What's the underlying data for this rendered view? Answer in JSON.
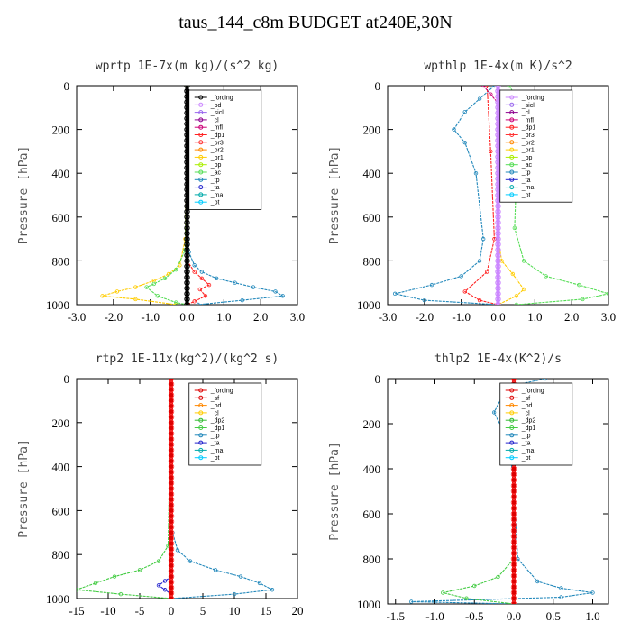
{
  "title": "taus_144_c8m  BUDGET at240E,30N",
  "colors": {
    "forcing": "#000000",
    "pd": "#cc88ff",
    "sicl": "#9966ee",
    "cl": "#8e008e",
    "mfl": "#cc0077",
    "dp1": "#ff2222",
    "dp2": "#33bb33",
    "pr3": "#ff3333",
    "pr2": "#ff8800",
    "pr1": "#ffcc00",
    "bp": "#aaee00",
    "ac": "#55dd55",
    "tp": "#2288bb",
    "ta": "#2222cc",
    "ma": "#00aaaa",
    "bt": "#00ccff",
    "sf": "#dd0000",
    "green": "#44cc44"
  },
  "chart_data": [
    {
      "type": "line",
      "title": "wprtp  1E-7x(m kg)/(s^2 kg)",
      "ylabel": "Pressure [hPa]",
      "xlim": [
        -3.0,
        3.0
      ],
      "ylim": [
        1000,
        0
      ],
      "xticks": [
        "-3.0",
        "-2.0",
        "-1.0",
        "0.0",
        "1.0",
        "2.0",
        "3.0"
      ],
      "yticks": [
        "0",
        "200",
        "400",
        "600",
        "800",
        "1000"
      ],
      "legend": [
        "_forcing",
        "_pd",
        "_sicl",
        "_cl",
        "_mfl",
        "_dp1",
        "_pr3",
        "_pr2",
        "_pr1",
        "_bp",
        "_ac",
        "_tp",
        "_ta",
        "_ma",
        "_bt"
      ],
      "legend_position": "top-right",
      "series": [
        {
          "name": "_tp",
          "color": "tp",
          "points": [
            [
              0.0,
              0
            ],
            [
              0.02,
              500
            ],
            [
              0.05,
              760
            ],
            [
              0.2,
              820
            ],
            [
              0.4,
              850
            ],
            [
              0.8,
              880
            ],
            [
              1.3,
              900
            ],
            [
              1.8,
              920
            ],
            [
              2.4,
              940
            ],
            [
              2.6,
              960
            ],
            [
              1.5,
              980
            ],
            [
              0.3,
              1000
            ]
          ]
        },
        {
          "name": "_pr1",
          "color": "pr1",
          "points": [
            [
              0.0,
              0
            ],
            [
              -0.05,
              700
            ],
            [
              -0.2,
              820
            ],
            [
              -0.5,
              860
            ],
            [
              -0.9,
              890
            ],
            [
              -1.4,
              920
            ],
            [
              -1.9,
              940
            ],
            [
              -2.3,
              960
            ],
            [
              -1.4,
              975
            ],
            [
              -0.3,
              1000
            ]
          ]
        },
        {
          "name": "_ac",
          "color": "ac",
          "points": [
            [
              0.0,
              0
            ],
            [
              -0.05,
              750
            ],
            [
              -0.3,
              840
            ],
            [
              -0.6,
              880
            ],
            [
              -0.9,
              905
            ],
            [
              -1.1,
              920
            ],
            [
              -0.8,
              960
            ],
            [
              -0.3,
              990
            ],
            [
              0.0,
              1000
            ]
          ]
        },
        {
          "name": "_dp1",
          "color": "dp1",
          "points": [
            [
              0.0,
              800
            ],
            [
              0.2,
              850
            ],
            [
              0.4,
              880
            ],
            [
              0.6,
              910
            ],
            [
              0.35,
              930
            ],
            [
              0.5,
              960
            ],
            [
              0.2,
              985
            ],
            [
              0.0,
              1000
            ]
          ]
        },
        {
          "name": "_forcing",
          "color": "forcing",
          "points": [
            [
              0.0,
              0
            ],
            [
              0.0,
              1000
            ]
          ]
        }
      ]
    },
    {
      "type": "line",
      "title": "wpthlp  1E-4x(m K)/s^2",
      "ylabel": "Pressure [hPa]",
      "xlim": [
        -3.0,
        3.0
      ],
      "ylim": [
        1000,
        0
      ],
      "xticks": [
        "-3.0",
        "-2.0",
        "-1.0",
        "0.0",
        "1.0",
        "2.0",
        "3.0"
      ],
      "yticks": [
        "0",
        "200",
        "400",
        "600",
        "800",
        "1000"
      ],
      "legend": [
        "_forcing",
        "_sicl",
        "_cl",
        "_mfl",
        "_dp1",
        "_pr3",
        "_pr2",
        "_pr1",
        "_bp",
        "_ac",
        "_tp",
        "_ta",
        "_ma",
        "_bt"
      ],
      "legend_position": "top-right",
      "series": [
        {
          "name": "_tp",
          "color": "tp",
          "points": [
            [
              -0.1,
              0
            ],
            [
              -0.5,
              60
            ],
            [
              -0.9,
              120
            ],
            [
              -1.2,
              200
            ],
            [
              -0.9,
              260
            ],
            [
              -0.6,
              400
            ],
            [
              -0.4,
              700
            ],
            [
              -0.5,
              800
            ],
            [
              -1.0,
              870
            ],
            [
              -1.8,
              910
            ],
            [
              -2.8,
              950
            ],
            [
              -2.0,
              980
            ],
            [
              0.0,
              1000
            ]
          ]
        },
        {
          "name": "_ac",
          "color": "ac",
          "points": [
            [
              0.3,
              0
            ],
            [
              0.6,
              80
            ],
            [
              0.8,
              150
            ],
            [
              0.6,
              260
            ],
            [
              0.5,
              400
            ],
            [
              0.45,
              650
            ],
            [
              0.7,
              800
            ],
            [
              1.3,
              870
            ],
            [
              2.2,
              910
            ],
            [
              3.0,
              950
            ],
            [
              2.3,
              975
            ],
            [
              0.5,
              1000
            ]
          ]
        },
        {
          "name": "_pr1",
          "color": "pr1",
          "points": [
            [
              0.0,
              0
            ],
            [
              0.0,
              700
            ],
            [
              0.1,
              800
            ],
            [
              0.4,
              860
            ],
            [
              0.7,
              930
            ],
            [
              0.5,
              960
            ],
            [
              0.0,
              1000
            ]
          ]
        },
        {
          "name": "_dp1",
          "color": "dp1",
          "points": [
            [
              -0.3,
              0
            ],
            [
              -0.2,
              300
            ],
            [
              -0.1,
              700
            ],
            [
              -0.3,
              850
            ],
            [
              -0.9,
              940
            ],
            [
              -0.5,
              980
            ],
            [
              0.0,
              1000
            ]
          ]
        },
        {
          "name": "_mfl",
          "color": "mfl",
          "points": [
            [
              -0.4,
              0
            ],
            [
              -0.2,
              40
            ],
            [
              0.0,
              80
            ],
            [
              0.0,
              1000
            ]
          ]
        },
        {
          "name": "_forcing",
          "color": "pd",
          "points": [
            [
              0.0,
              0
            ],
            [
              0.0,
              1000
            ]
          ]
        }
      ]
    },
    {
      "type": "line",
      "title": "rtp2  1E-11x(kg^2)/(kg^2 s)",
      "ylabel": "Pressure [hPa]",
      "xlim": [
        -15,
        20
      ],
      "ylim": [
        1000,
        0
      ],
      "xticks": [
        "-15",
        "-10",
        "-5",
        "0",
        "5",
        "10",
        "15",
        "20"
      ],
      "yticks": [
        "0",
        "200",
        "400",
        "600",
        "800",
        "1000"
      ],
      "legend": [
        "_forcing",
        "_sf",
        "_pd",
        "_cl",
        "_dp2",
        "_dp1",
        "_tp",
        "_ta",
        "_ma",
        "_bt"
      ],
      "legend_position": "top-right",
      "series": [
        {
          "name": "_tp",
          "color": "tp",
          "points": [
            [
              0.0,
              0
            ],
            [
              0.2,
              700
            ],
            [
              1.0,
              780
            ],
            [
              3.0,
              830
            ],
            [
              7.0,
              870
            ],
            [
              11.0,
              900
            ],
            [
              14.0,
              930
            ],
            [
              16.0,
              960
            ],
            [
              10.0,
              980
            ],
            [
              0.0,
              1000
            ]
          ]
        },
        {
          "name": "_dp1",
          "color": "green",
          "points": [
            [
              0.0,
              0
            ],
            [
              -0.5,
              760
            ],
            [
              -2.0,
              830
            ],
            [
              -5.0,
              870
            ],
            [
              -9.0,
              900
            ],
            [
              -12.0,
              930
            ],
            [
              -15.0,
              960
            ],
            [
              -8.0,
              980
            ],
            [
              0.0,
              1000
            ]
          ]
        },
        {
          "name": "_ta",
          "color": "ta",
          "points": [
            [
              0.0,
              900
            ],
            [
              -1.0,
              920
            ],
            [
              -2.0,
              940
            ],
            [
              -1.0,
              960
            ],
            [
              0.0,
              980
            ]
          ]
        },
        {
          "name": "_forcing",
          "color": "sf",
          "points": [
            [
              0.0,
              0
            ],
            [
              0.0,
              1000
            ]
          ]
        }
      ]
    },
    {
      "type": "line",
      "title": "thlp2  1E-4x(K^2)/s",
      "ylabel": "Pressure [hPa]",
      "xlim": [
        -1.6,
        1.2
      ],
      "ylim": [
        1000,
        0
      ],
      "xticks": [
        "-1.5",
        "-1.0",
        "-0.5",
        "0.0",
        "0.5",
        "1.0"
      ],
      "yticks": [
        "0",
        "200",
        "400",
        "600",
        "800",
        "1000"
      ],
      "legend": [
        "_forcing",
        "_sf",
        "_pd",
        "_cl",
        "_dp2",
        "_dp1",
        "_tp",
        "_ta",
        "_ma",
        "_bt"
      ],
      "legend_position": "top-right",
      "series": [
        {
          "name": "_tp",
          "color": "tp",
          "points": [
            [
              0.4,
              0
            ],
            [
              0.0,
              30
            ],
            [
              -0.15,
              80
            ],
            [
              -0.25,
              150
            ],
            [
              -0.15,
              220
            ],
            [
              -0.05,
              300
            ],
            [
              0.0,
              500
            ],
            [
              0.05,
              800
            ],
            [
              0.3,
              900
            ],
            [
              0.6,
              930
            ],
            [
              1.0,
              950
            ],
            [
              0.6,
              970
            ],
            [
              -1.3,
              990
            ],
            [
              0.0,
              1000
            ]
          ]
        },
        {
          "name": "_dp1",
          "color": "green",
          "points": [
            [
              0.0,
              0
            ],
            [
              0.0,
              800
            ],
            [
              -0.2,
              880
            ],
            [
              -0.5,
              920
            ],
            [
              -0.9,
              950
            ],
            [
              -0.6,
              975
            ],
            [
              0.0,
              1000
            ]
          ]
        },
        {
          "name": "_forcing",
          "color": "sf",
          "points": [
            [
              0.0,
              0
            ],
            [
              0.0,
              1000
            ]
          ]
        }
      ]
    }
  ]
}
